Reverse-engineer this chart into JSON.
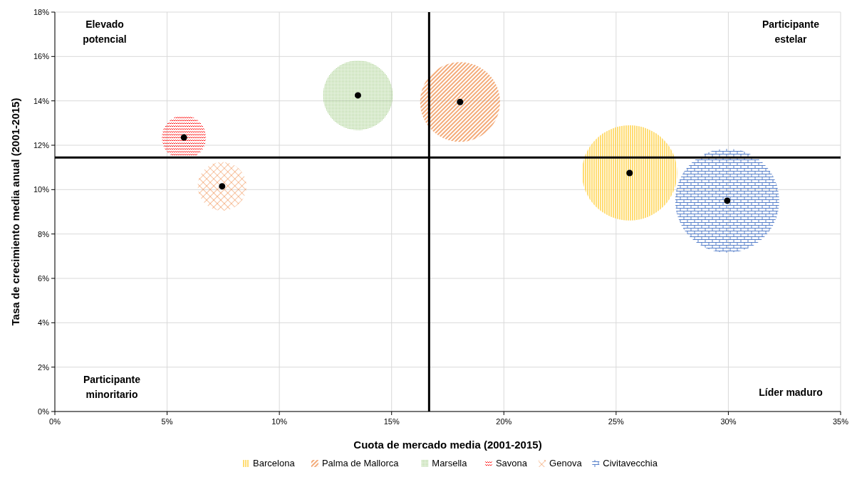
{
  "chart_data": {
    "type": "bubble",
    "xlabel": "Cuota de mercado media (2001-2015)",
    "ylabel": "Tasa de crecimiento media anual (2001-2015)",
    "xlim": [
      0,
      35
    ],
    "xticks": [
      {
        "value": 0,
        "label": "0%"
      },
      {
        "value": 5,
        "label": "5%"
      },
      {
        "value": 10,
        "label": "10%"
      },
      {
        "value": 15,
        "label": "15%"
      },
      {
        "value": 20,
        "label": "20%"
      },
      {
        "value": 25,
        "label": "25%"
      },
      {
        "value": 30,
        "label": "30%"
      },
      {
        "value": 35,
        "label": "35%"
      }
    ],
    "ylim": [
      0,
      18
    ],
    "yticks": [
      {
        "value": 0,
        "label": "0%"
      },
      {
        "value": 2,
        "label": "2%"
      },
      {
        "value": 4,
        "label": "4%"
      },
      {
        "value": 6,
        "label": "6%"
      },
      {
        "value": 8,
        "label": "8%"
      },
      {
        "value": 10,
        "label": "10%"
      },
      {
        "value": 12,
        "label": "12%"
      },
      {
        "value": 14,
        "label": "14%"
      },
      {
        "value": 16,
        "label": "16%"
      },
      {
        "value": 18,
        "label": "18%"
      }
    ],
    "grid": true,
    "legend": "bottom",
    "ref_lines": [
      {
        "axis": "x",
        "value": 16.67,
        "color": "#000000"
      },
      {
        "axis": "y",
        "value": 11.45,
        "color": "#000000"
      }
    ],
    "annotations": [
      "Elevado\npotencial",
      "Participante\nestelar",
      "Participante\nminoritario",
      "Líder maduro"
    ],
    "series": [
      {
        "name": "Barcelona",
        "color": "#ffc000",
        "x": [
          25.6
        ],
        "values": [
          10.75
        ],
        "sizes": [
          0.84
        ]
      },
      {
        "name": "Palma de Mallorca",
        "color": "#ed7d31",
        "x": [
          18.05
        ],
        "values": [
          13.95
        ],
        "sizes": [
          0.59
        ]
      },
      {
        "name": "Marsella",
        "color": "#a9d18e",
        "x": [
          13.5
        ],
        "values": [
          14.25
        ],
        "sizes": [
          0.45
        ]
      },
      {
        "name": "Savona",
        "color": "#ff0000",
        "x": [
          5.75
        ],
        "values": [
          12.35
        ],
        "sizes": [
          0.18
        ]
      },
      {
        "name": "Genova",
        "color": "#ed7d31",
        "x": [
          7.45
        ],
        "values": [
          10.15
        ],
        "sizes": [
          0.22
        ]
      },
      {
        "name": "Civitavecchia",
        "color": "#4472c4",
        "x": [
          29.95
        ],
        "values": [
          9.5
        ],
        "sizes": [
          1
        ]
      },
      {
        "type": "scatter",
        "color": "#000000",
        "marker": "circle",
        "x": [
          25.6,
          18.05,
          13.5,
          5.75,
          7.45,
          29.95
        ],
        "values": [
          10.75,
          13.95,
          14.25,
          12.35,
          10.15,
          9.5
        ]
      }
    ]
  }
}
